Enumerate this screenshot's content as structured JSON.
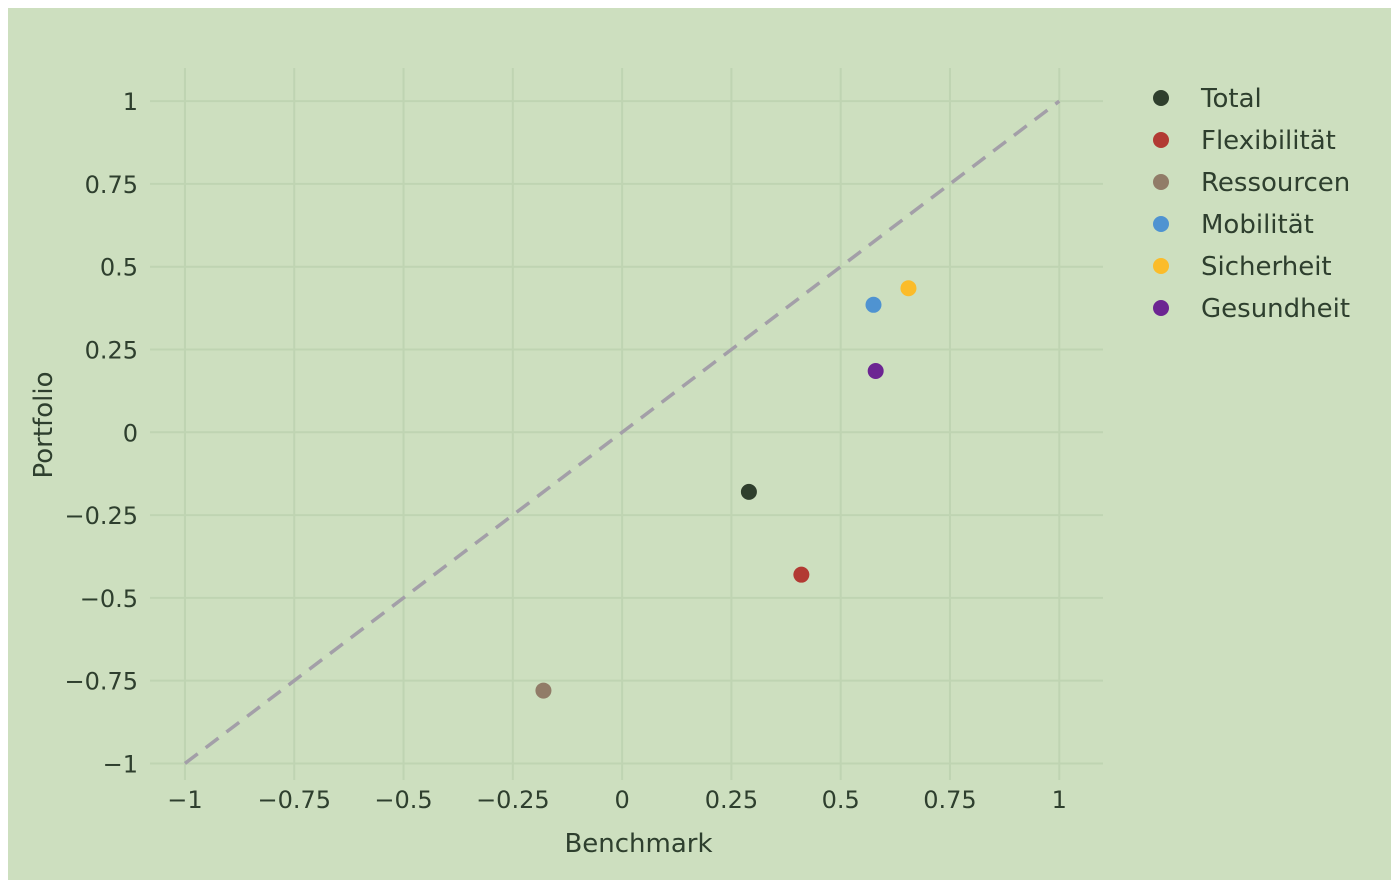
{
  "chart_data": {
    "type": "scatter",
    "xlabel": "Benchmark",
    "ylabel": "Portfolio",
    "xlim": [
      -1.08,
      1.1
    ],
    "ylim": [
      -1.05,
      1.1
    ],
    "x_ticks": [
      -1,
      -0.75,
      -0.5,
      -0.25,
      0,
      0.25,
      0.5,
      0.75,
      1
    ],
    "y_ticks": [
      -1,
      -0.75,
      -0.5,
      -0.25,
      0,
      0.25,
      0.5,
      0.75,
      1
    ],
    "x_tick_labels": [
      "−1",
      "−0.75",
      "−0.5",
      "−0.25",
      "0",
      "0.25",
      "0.5",
      "0.75",
      "1"
    ],
    "y_tick_labels": [
      "−1",
      "−0.75",
      "−0.5",
      "−0.25",
      "0",
      "0.25",
      "0.5",
      "0.75",
      "1"
    ],
    "grid": true,
    "legend_position": "top-right",
    "reference_line": {
      "x": [
        -1,
        1
      ],
      "y": [
        -1,
        1
      ],
      "style": "dashed",
      "color": "#a39fa8"
    },
    "series": [
      {
        "name": "Total",
        "x": [
          0.29
        ],
        "y": [
          -0.18
        ],
        "color": "#2f3f2d"
      },
      {
        "name": "Flexibilität",
        "x": [
          0.41
        ],
        "y": [
          -0.43
        ],
        "color": "#b23a33"
      },
      {
        "name": "Ressourcen",
        "x": [
          -0.18
        ],
        "y": [
          -0.78
        ],
        "color": "#917c68"
      },
      {
        "name": "Mobilität",
        "x": [
          0.575
        ],
        "y": [
          0.385
        ],
        "color": "#4f93d1"
      },
      {
        "name": "Sicherheit",
        "x": [
          0.655
        ],
        "y": [
          0.435
        ],
        "color": "#fbbc2a"
      },
      {
        "name": "Gesundheit",
        "x": [
          0.58
        ],
        "y": [
          0.185
        ],
        "color": "#6c2592"
      }
    ]
  },
  "colors": {
    "background": "#cddfbf",
    "plot_background": "#cddfbf",
    "grid": "#bfd4b2",
    "text": "#2e3f2e"
  }
}
